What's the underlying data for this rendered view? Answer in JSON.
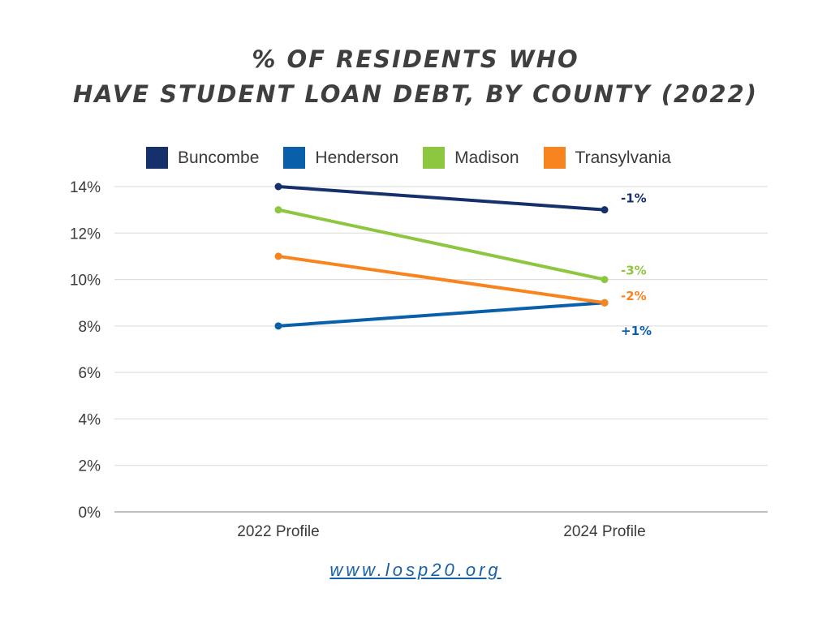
{
  "header": {
    "title_line1": "% OF RESIDENTS WHO",
    "title_line2": "HAVE STUDENT LOAN DEBT, BY COUNTY (2022)"
  },
  "footer": {
    "link": "www.losp20.org"
  },
  "chart_data": {
    "type": "line",
    "x": [
      "2022 Profile",
      "2024 Profile"
    ],
    "ylim": [
      0,
      14
    ],
    "yticks": [
      0,
      2,
      4,
      6,
      8,
      10,
      12,
      14
    ],
    "ytick_labels": [
      "0%",
      "2%",
      "4%",
      "6%",
      "8%",
      "10%",
      "12%",
      "14%"
    ],
    "grid": true,
    "legend_position": "top",
    "series": [
      {
        "name": "Buncombe",
        "color": "#15306b",
        "values": [
          14,
          13
        ],
        "change_label": "-1%"
      },
      {
        "name": "Henderson",
        "color": "#0a5fab",
        "values": [
          8,
          9
        ],
        "change_label": "+1%"
      },
      {
        "name": "Madison",
        "color": "#8dc63f",
        "values": [
          13,
          10
        ],
        "change_label": "-3%"
      },
      {
        "name": "Transylvania",
        "color": "#f7841f",
        "values": [
          11,
          9
        ],
        "change_label": "-2%"
      }
    ]
  }
}
